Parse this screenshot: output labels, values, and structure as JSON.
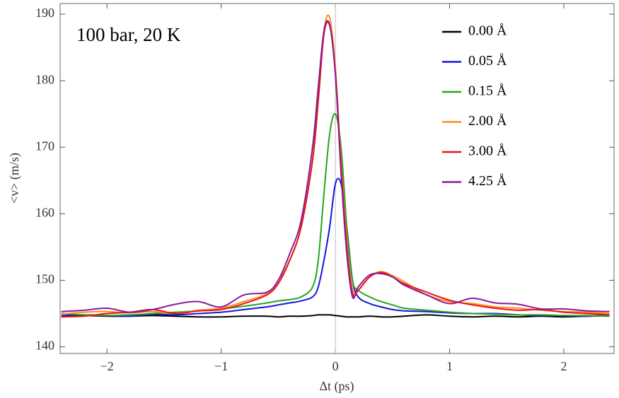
{
  "chart_data": {
    "type": "line",
    "annotation": "100 bar, 20 K",
    "xlabel": "Δt (ps)",
    "ylabel": "<v> (m/s)",
    "x": [
      -2.4,
      -2.2,
      -2.0,
      -1.8,
      -1.6,
      -1.4,
      -1.2,
      -1.0,
      -0.8,
      -0.6,
      -0.5,
      -0.4,
      -0.3,
      -0.2,
      -0.15,
      -0.1,
      -0.05,
      0,
      0.05,
      0.1,
      0.15,
      0.2,
      0.3,
      0.4,
      0.5,
      0.6,
      0.8,
      1.0,
      1.2,
      1.4,
      1.6,
      1.8,
      2.0,
      2.2,
      2.4
    ],
    "series": [
      {
        "name": "0.00 Å",
        "color": "#000000",
        "values": [
          144.6,
          144.7,
          144.6,
          144.6,
          144.7,
          144.6,
          144.5,
          144.5,
          144.6,
          144.6,
          144.5,
          144.6,
          144.6,
          144.7,
          144.8,
          144.8,
          144.8,
          144.7,
          144.6,
          144.5,
          144.5,
          144.5,
          144.6,
          144.5,
          144.5,
          144.6,
          144.8,
          144.6,
          144.5,
          144.6,
          144.5,
          144.6,
          144.5,
          144.6,
          144.7
        ]
      },
      {
        "name": "0.05 Å",
        "color": "#1414e0",
        "values": [
          144.7,
          144.8,
          144.7,
          144.6,
          144.9,
          144.8,
          145.0,
          145.2,
          145.6,
          146.0,
          146.3,
          146.6,
          146.9,
          147.5,
          149,
          153,
          158,
          164.5,
          164.5,
          158,
          150,
          147.5,
          146.5,
          146,
          145.6,
          145.4,
          145.3,
          145.1,
          145,
          145,
          144.8,
          144.7,
          144.7,
          144.6,
          144.8
        ]
      },
      {
        "name": "0.15 Å",
        "color": "#22a522",
        "values": [
          145,
          144.8,
          144.7,
          144.8,
          145,
          145.2,
          145.4,
          145.7,
          146.1,
          146.6,
          146.9,
          147.1,
          147.5,
          149,
          153,
          163,
          172,
          175,
          170,
          158,
          150,
          148.5,
          147.5,
          146.8,
          146.3,
          145.8,
          145.5,
          145.2,
          145.0,
          144.9,
          144.8,
          144.8,
          144.7,
          144.7,
          144.6
        ]
      },
      {
        "name": "2.00 Å",
        "color": "#ff8a1c",
        "values": [
          144.9,
          145.2,
          145.3,
          145.1,
          145.3,
          145.0,
          145.5,
          145.8,
          146.8,
          148,
          150,
          153,
          158,
          168,
          177,
          187.5,
          189.5,
          182,
          168,
          156,
          148.5,
          148.5,
          150.5,
          151.3,
          150.7,
          149.8,
          147.8,
          146.8,
          146.5,
          146,
          145.8,
          145.5,
          145.3,
          145.2,
          145.0
        ]
      },
      {
        "name": "3.00 Å",
        "color": "#e61414",
        "values": [
          144.5,
          144.6,
          145.0,
          145.2,
          145.6,
          145.0,
          145.4,
          145.6,
          146.5,
          147.8,
          149.5,
          153,
          158,
          168,
          177,
          187,
          188.3,
          181,
          167,
          155,
          148,
          148.5,
          150.5,
          151.2,
          150.5,
          149.5,
          148.2,
          147,
          146.3,
          145.8,
          145.5,
          145.6,
          145.2,
          145.0,
          144.8
        ]
      },
      {
        "name": "4.25 Å",
        "color": "#8a1a9c",
        "values": [
          145.3,
          145.5,
          145.8,
          145.2,
          145.6,
          146.4,
          146.8,
          146,
          147.8,
          148.2,
          150,
          154,
          159,
          170,
          179,
          187.5,
          188.4,
          181,
          166,
          154,
          147.5,
          149,
          150.8,
          151,
          150.5,
          149.3,
          147.8,
          146.5,
          147.3,
          146.6,
          146.4,
          145.7,
          145.7,
          145.4,
          145.3
        ]
      }
    ],
    "xlim": [
      -2.41,
      2.44
    ],
    "ylim": [
      139,
      191.6
    ],
    "xticks": [
      {
        "value": -2,
        "label": "−2"
      },
      {
        "value": -1,
        "label": "−1"
      },
      0,
      1,
      2
    ],
    "yticks": [
      140,
      150,
      160,
      170,
      180,
      190
    ],
    "legend": "top-right",
    "grid": false
  }
}
